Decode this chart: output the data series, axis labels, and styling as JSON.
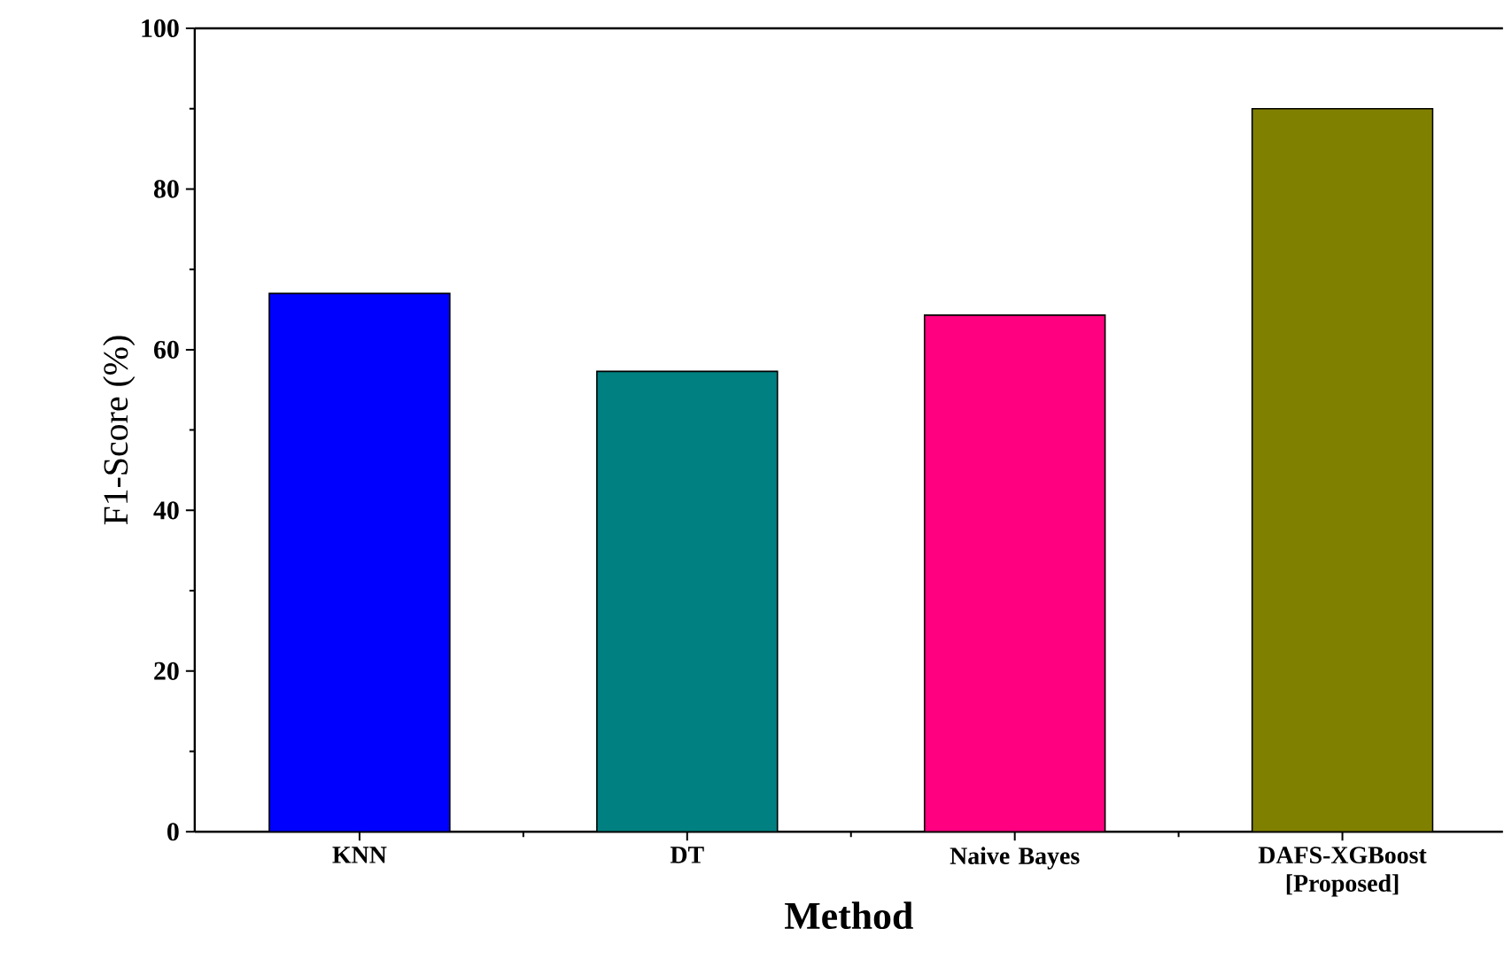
{
  "chart_data": {
    "type": "bar",
    "xlabel": "Method",
    "ylabel": "F1-Score (%)",
    "categories": [
      "KNN",
      "DT",
      "Naive Bayes",
      "DAFS-XGBoost [Proposed]"
    ],
    "values": [
      67,
      57.3,
      64.3,
      90
    ],
    "colors": [
      "#0000ff",
      "#008080",
      "#ff0080",
      "#808000"
    ],
    "ylim": [
      0,
      100
    ],
    "yticks": [
      0,
      20,
      40,
      60,
      80,
      100
    ],
    "grid": false
  }
}
